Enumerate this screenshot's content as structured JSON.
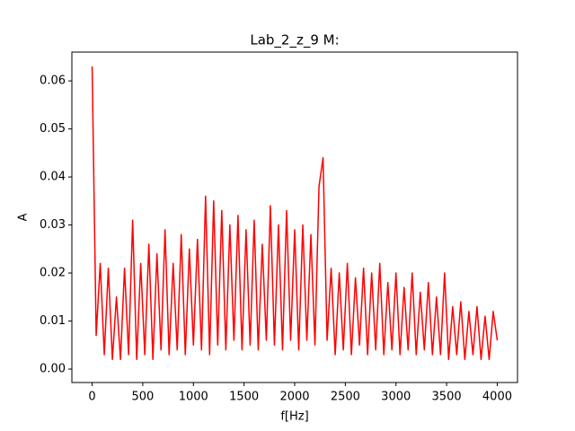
{
  "chart_data": {
    "type": "line",
    "title": "Lab_2_z_9 M:",
    "x_label": "f[Hz]",
    "y_label": "A",
    "color": "#ff0000",
    "x": [
      0,
      40,
      80,
      120,
      160,
      200,
      240,
      280,
      320,
      360,
      400,
      440,
      480,
      520,
      560,
      600,
      640,
      680,
      720,
      760,
      800,
      840,
      880,
      920,
      960,
      1000,
      1040,
      1080,
      1120,
      1160,
      1200,
      1240,
      1280,
      1320,
      1360,
      1400,
      1440,
      1480,
      1520,
      1560,
      1600,
      1640,
      1680,
      1720,
      1760,
      1800,
      1840,
      1880,
      1920,
      1960,
      2000,
      2040,
      2080,
      2120,
      2160,
      2200,
      2240,
      2280,
      2320,
      2360,
      2400,
      2440,
      2480,
      2520,
      2560,
      2600,
      2640,
      2680,
      2720,
      2760,
      2800,
      2840,
      2880,
      2920,
      2960,
      3000,
      3040,
      3080,
      3120,
      3160,
      3200,
      3240,
      3280,
      3320,
      3360,
      3400,
      3440,
      3480,
      3520,
      3560,
      3600,
      3640,
      3680,
      3720,
      3760,
      3800,
      3840,
      3880,
      3920,
      3960,
      4000
    ],
    "values": [
      0.063,
      0.007,
      0.022,
      0.003,
      0.021,
      0.002,
      0.015,
      0.002,
      0.021,
      0.003,
      0.031,
      0.002,
      0.022,
      0.003,
      0.026,
      0.002,
      0.024,
      0.004,
      0.029,
      0.003,
      0.022,
      0.004,
      0.028,
      0.003,
      0.025,
      0.005,
      0.027,
      0.004,
      0.036,
      0.003,
      0.035,
      0.005,
      0.033,
      0.004,
      0.03,
      0.006,
      0.032,
      0.004,
      0.029,
      0.005,
      0.031,
      0.004,
      0.026,
      0.006,
      0.034,
      0.005,
      0.03,
      0.004,
      0.033,
      0.006,
      0.029,
      0.004,
      0.03,
      0.006,
      0.028,
      0.005,
      0.038,
      0.044,
      0.006,
      0.021,
      0.003,
      0.02,
      0.004,
      0.022,
      0.003,
      0.019,
      0.005,
      0.021,
      0.003,
      0.02,
      0.004,
      0.022,
      0.003,
      0.018,
      0.004,
      0.02,
      0.003,
      0.017,
      0.004,
      0.02,
      0.003,
      0.016,
      0.004,
      0.018,
      0.003,
      0.015,
      0.003,
      0.02,
      0.002,
      0.013,
      0.003,
      0.014,
      0.002,
      0.012,
      0.003,
      0.013,
      0.002,
      0.011,
      0.002,
      0.012,
      0.006
    ],
    "xlim": [
      -200,
      4200
    ],
    "ylim": [
      -0.0028,
      0.066
    ],
    "xticks": [
      0,
      500,
      1000,
      1500,
      2000,
      2500,
      3000,
      3500,
      4000
    ],
    "yticks": [
      {
        "value": 0,
        "label": "0.00"
      },
      0.01,
      0.02,
      0.03,
      0.04,
      0.05,
      0.06
    ]
  }
}
